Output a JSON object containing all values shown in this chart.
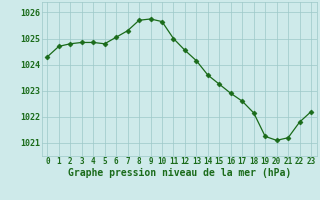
{
  "x": [
    0,
    1,
    2,
    3,
    4,
    5,
    6,
    7,
    8,
    9,
    10,
    11,
    12,
    13,
    14,
    15,
    16,
    17,
    18,
    19,
    20,
    21,
    22,
    23
  ],
  "y": [
    1024.3,
    1024.7,
    1024.8,
    1024.85,
    1024.85,
    1024.8,
    1025.05,
    1025.3,
    1025.7,
    1025.75,
    1025.65,
    1025.0,
    1024.55,
    1024.15,
    1023.6,
    1023.25,
    1022.9,
    1022.6,
    1022.15,
    1021.25,
    1021.1,
    1021.2,
    1021.8,
    1022.2
  ],
  "line_color": "#1a6b1a",
  "marker": "D",
  "marker_size": 2.5,
  "bg_color": "#ceeaea",
  "grid_color": "#9dc8c8",
  "xlabel": "Graphe pression niveau de la mer (hPa)",
  "xlabel_color": "#1a6b1a",
  "xlabel_fontsize": 7,
  "tick_color": "#1a6b1a",
  "ytick_fontsize": 6,
  "xtick_fontsize": 5.5,
  "ylim": [
    1020.5,
    1026.4
  ],
  "yticks": [
    1021,
    1022,
    1023,
    1024,
    1025,
    1026
  ],
  "xticks": [
    0,
    1,
    2,
    3,
    4,
    5,
    6,
    7,
    8,
    9,
    10,
    11,
    12,
    13,
    14,
    15,
    16,
    17,
    18,
    19,
    20,
    21,
    22,
    23
  ],
  "linewidth": 0.9
}
